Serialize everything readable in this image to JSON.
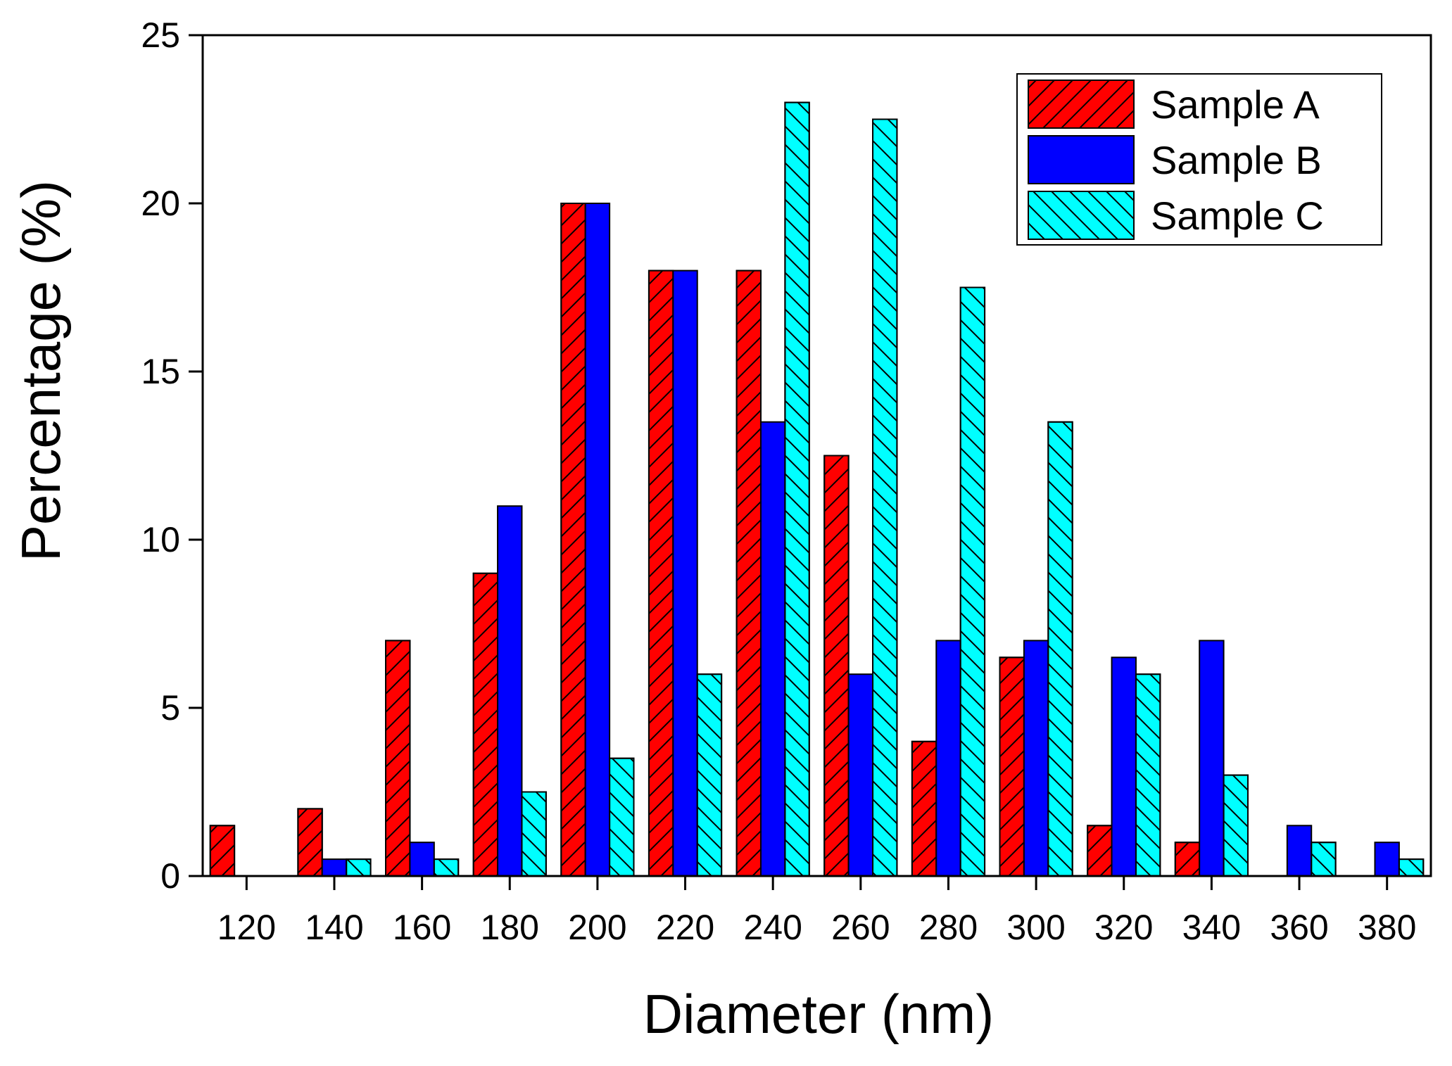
{
  "chart_data": {
    "type": "bar",
    "title": "",
    "xlabel": "Diameter (nm)",
    "ylabel": "Percentage (%)",
    "categories": [
      "120",
      "140",
      "160",
      "180",
      "200",
      "220",
      "240",
      "260",
      "280",
      "300",
      "320",
      "340",
      "360",
      "380"
    ],
    "ylim": [
      0,
      25
    ],
    "yticks": [
      0,
      5,
      10,
      15,
      20,
      25
    ],
    "ytick_labels": [
      "0",
      "5",
      "10",
      "15",
      "20",
      "25"
    ],
    "grid": false,
    "legend_position": "top-right",
    "series": [
      {
        "name": "Sample A",
        "color": "#ff0000",
        "pattern": "forward-hatch",
        "values": [
          1.5,
          2,
          7,
          9,
          20,
          18,
          18,
          12.5,
          4,
          6.5,
          1.5,
          1,
          0,
          0
        ]
      },
      {
        "name": "Sample B",
        "color": "#0000ff",
        "pattern": "solid",
        "values": [
          0,
          0.5,
          1,
          11,
          20,
          18,
          13.5,
          6,
          7,
          7,
          6.5,
          7,
          1.5,
          1
        ]
      },
      {
        "name": "Sample C",
        "color": "#00ffff",
        "pattern": "back-hatch",
        "values": [
          0,
          0.5,
          0.5,
          2.5,
          3.5,
          6,
          23,
          22.5,
          17.5,
          13.5,
          6,
          3,
          1,
          0.5
        ]
      }
    ]
  }
}
